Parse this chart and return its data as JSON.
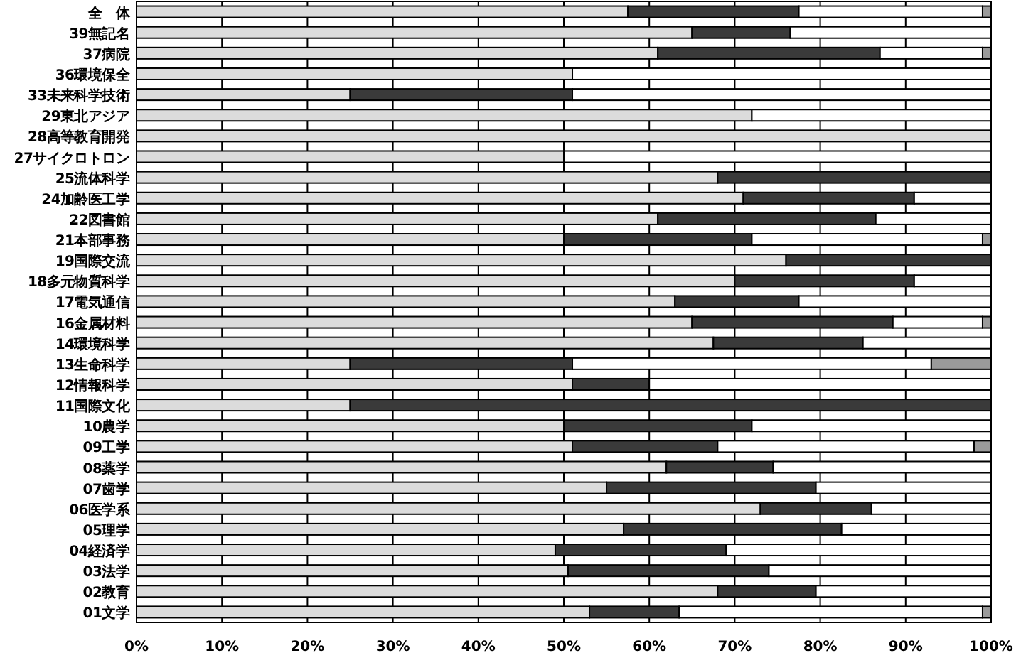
{
  "chart_data": {
    "type": "bar",
    "orientation": "horizontal",
    "stacked": true,
    "categories": [
      "全　体",
      "39無記名",
      "37病院",
      "36環境保全",
      "33未来科学技術",
      "29東北アジア",
      "28高等教育開発",
      "27サイクロトロン",
      "25流体科学",
      "24加齢医工学",
      "22図書館",
      "21本部事務",
      "19国際交流",
      "18多元物質科学",
      "17電気通信",
      "16金属材料",
      "14環境科学",
      "13生命科学",
      "12情報科学",
      "11国際文化",
      "10農学",
      "09工学",
      "08薬学",
      "07歯学",
      "06医学系",
      "05理学",
      "04経済学",
      "03法学",
      "02教育",
      "01文学"
    ],
    "series": [
      {
        "color": "#dcdcdc",
        "values": [
          57.5,
          65,
          61,
          51,
          25,
          72,
          100,
          50,
          68,
          71,
          61,
          50,
          76,
          70,
          63,
          65,
          67.5,
          25,
          51,
          25,
          50,
          51,
          62,
          55,
          73,
          57,
          49,
          50.5,
          68,
          53
        ]
      },
      {
        "color": "#3a3a3a",
        "values": [
          20,
          11.5,
          26,
          null,
          26,
          null,
          null,
          null,
          32,
          20,
          25.5,
          22,
          24,
          21,
          14.5,
          23.5,
          17.5,
          26,
          9,
          75,
          22,
          17,
          12.5,
          24.5,
          13,
          25.5,
          20,
          23.5,
          11.5,
          10.5
        ]
      },
      {
        "color": "#ffffff",
        "values": [
          21.5,
          23.5,
          12,
          49,
          49,
          28,
          null,
          50,
          null,
          9,
          13.5,
          27,
          null,
          9,
          22.5,
          10.5,
          15,
          42,
          40,
          null,
          28,
          30,
          25.5,
          20.5,
          14,
          17.5,
          31,
          26,
          20.5,
          35.5
        ]
      },
      {
        "color": "#9a9a9a",
        "values": [
          1,
          null,
          1,
          null,
          null,
          null,
          null,
          null,
          null,
          null,
          null,
          1,
          null,
          null,
          null,
          1,
          null,
          7,
          null,
          null,
          null,
          2,
          null,
          null,
          null,
          null,
          null,
          null,
          null,
          1
        ]
      }
    ],
    "xlim": [
      0,
      100
    ],
    "xticks": [
      {
        "value": 0,
        "label": "0%"
      },
      {
        "value": 10,
        "label": "10%"
      },
      {
        "value": 20,
        "label": "20%"
      },
      {
        "value": 30,
        "label": "30%"
      },
      {
        "value": 40,
        "label": "40%"
      },
      {
        "value": 50,
        "label": "50%"
      },
      {
        "value": 60,
        "label": "60%"
      },
      {
        "value": 70,
        "label": "70%"
      },
      {
        "value": 80,
        "label": "80%"
      },
      {
        "value": 90,
        "label": "90%"
      },
      {
        "value": 100,
        "label": "100%"
      }
    ],
    "grid": "x"
  }
}
